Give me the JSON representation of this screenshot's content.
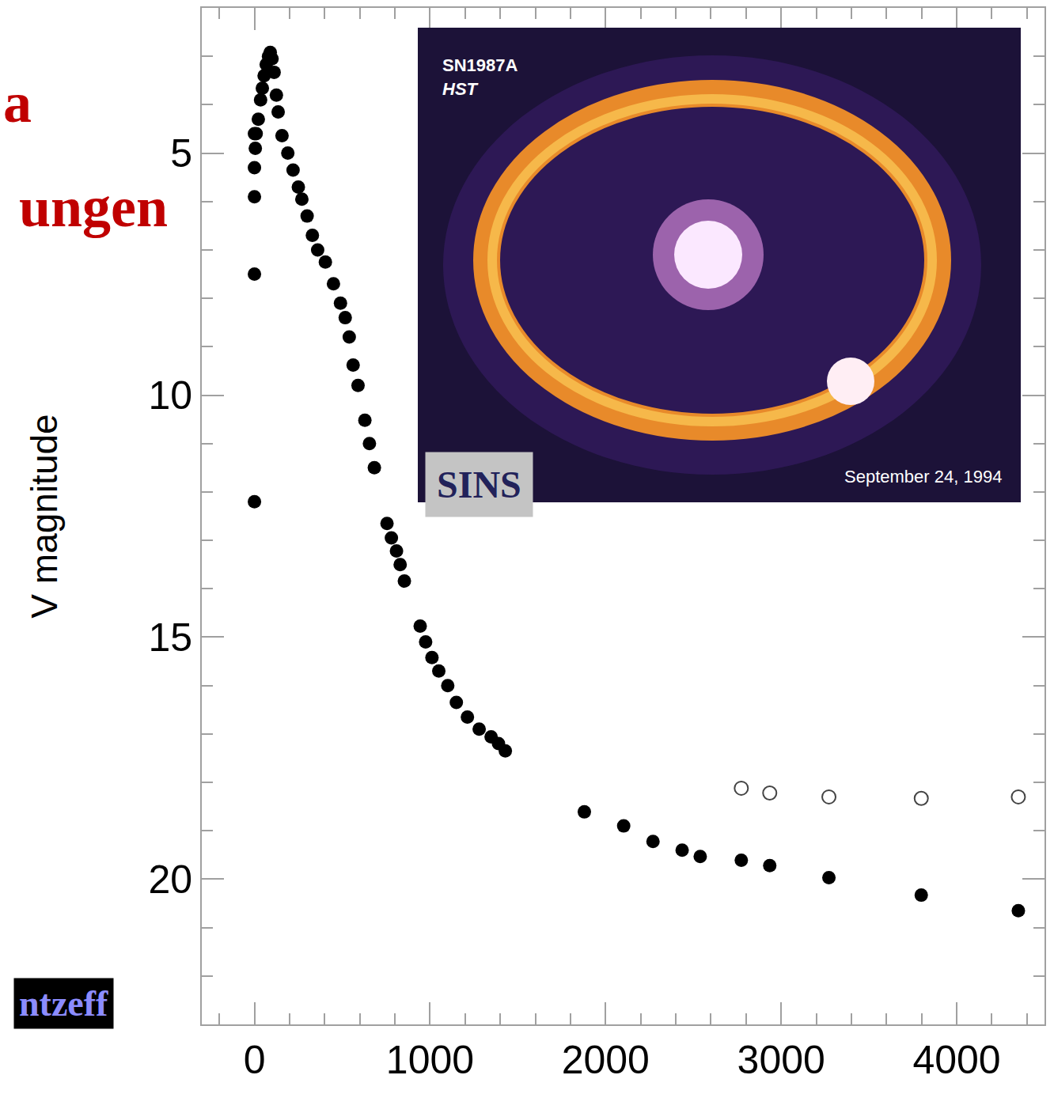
{
  "chart_data": {
    "type": "scatter",
    "ylabel": "V magnitude",
    "xlim": [
      -300,
      4500
    ],
    "ylim": [
      23,
      2
    ],
    "xticks": [
      0,
      1000,
      2000,
      3000,
      4000
    ],
    "yticks": [
      5,
      10,
      15,
      20
    ],
    "grid": false,
    "series": [
      {
        "color": "#000000",
        "marker": "filled",
        "x": [
          0,
          0,
          0,
          0,
          0,
          5,
          10,
          22,
          35,
          45,
          55,
          67,
          80,
          90,
          100,
          112,
          125,
          135,
          157,
          190,
          220,
          250,
          270,
          300,
          330,
          360,
          404,
          450,
          490,
          517,
          540,
          562,
          590,
          629,
          655,
          683,
          755,
          780,
          809,
          830,
          854,
          944,
          975,
          1011,
          1050,
          1101,
          1150,
          1213,
          1280,
          1348,
          1390,
          1429,
          1879,
          2103,
          2270,
          2436,
          2539,
          2773,
          2935,
          3272,
          3798,
          4351
        ],
        "values": [
          4.6,
          5.3,
          5.9,
          7.5,
          12.2,
          4.9,
          4.6,
          4.3,
          3.9,
          3.66,
          3.4,
          3.17,
          3.0,
          2.92,
          3.05,
          3.33,
          3.8,
          4.15,
          4.64,
          5.0,
          5.35,
          5.7,
          5.95,
          6.3,
          6.7,
          7.0,
          7.25,
          7.7,
          8.1,
          8.4,
          8.8,
          9.38,
          9.8,
          10.52,
          11.0,
          11.5,
          12.65,
          12.95,
          13.22,
          13.5,
          13.84,
          14.77,
          15.1,
          15.42,
          15.7,
          16.0,
          16.35,
          16.65,
          16.9,
          17.06,
          17.2,
          17.35,
          18.61,
          18.9,
          19.22,
          19.4,
          19.53,
          19.61,
          19.72,
          19.97,
          20.33,
          20.65
        ]
      },
      {
        "color": "#444444",
        "marker": "open",
        "x": [
          2773,
          2935,
          3272,
          3798,
          4351
        ],
        "values": [
          18.12,
          18.22,
          18.3,
          18.33,
          18.3
        ]
      }
    ],
    "annotations": [
      "a",
      "ungen",
      "ntzeff",
      "SINS"
    ],
    "inset": {
      "texts": [
        "SN1987A",
        "HST",
        "September 24, 1994"
      ]
    }
  }
}
